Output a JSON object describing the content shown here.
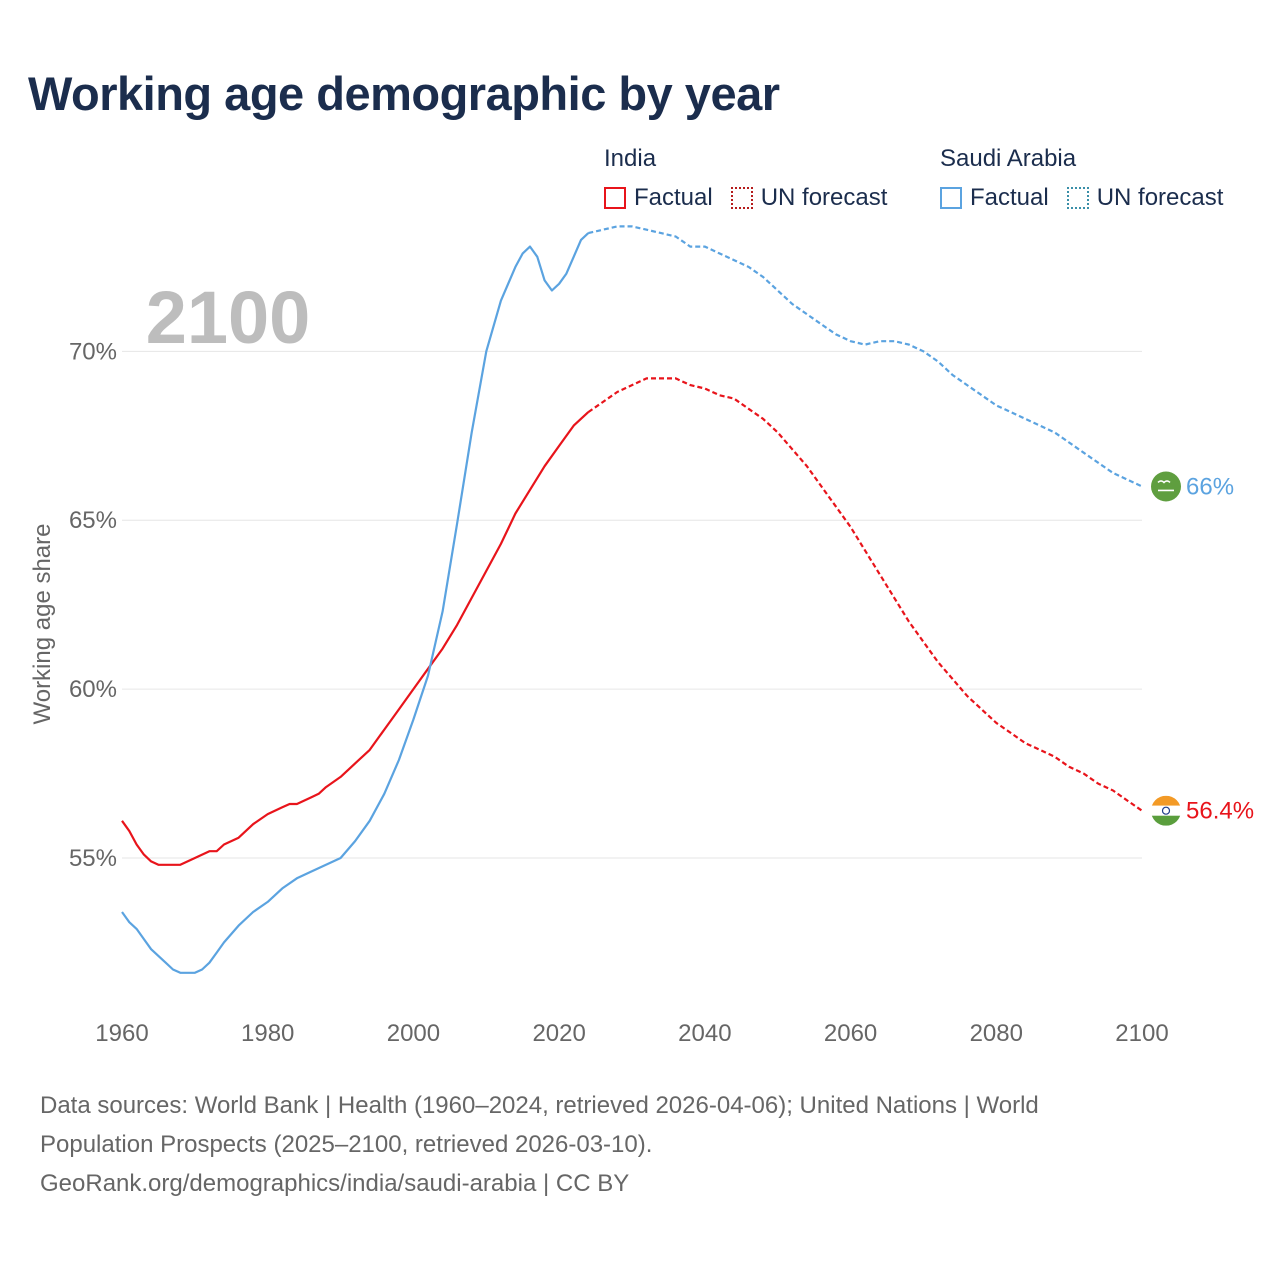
{
  "title": "Working age demographic by year",
  "year_label": "2100",
  "legend": {
    "india": {
      "name": "India",
      "factual": "Factual",
      "forecast": "UN forecast"
    },
    "saudi": {
      "name": "Saudi Arabia",
      "factual": "Factual",
      "forecast": "UN forecast"
    }
  },
  "colors": {
    "india": "#e8141b",
    "saudi": "#5ba3e0",
    "india_dot": "#b51c1c",
    "saudi_dot": "#3a8fa8"
  },
  "icons": {
    "india": "india-flag-icon",
    "saudi": "saudi-flag-icon"
  },
  "source": {
    "line1": "Data sources: World Bank | Health (1960–2024, retrieved 2026-04-06); United Nations | World",
    "line2": "Population Prospects (2025–2100, retrieved 2026-03-10).",
    "line3": "GeoRank.org/demographics/india/saudi-arabia | CC BY"
  },
  "chart_data": {
    "type": "line",
    "title": "Working age demographic by year",
    "xlabel": "",
    "ylabel": "Working age share",
    "xlim": [
      1960,
      2100
    ],
    "ylim": [
      50.5,
      73
    ],
    "grid": true,
    "x_ticks": [
      1960,
      1980,
      2000,
      2020,
      2040,
      2060,
      2080,
      2100
    ],
    "x_tick_labels": [
      "1960",
      "1980",
      "2000",
      "2020",
      "2040",
      "2060",
      "2080",
      "2100"
    ],
    "y_ticks": [
      55,
      60,
      65,
      70
    ],
    "y_tick_labels": [
      "55%",
      "60%",
      "65%",
      "70%"
    ],
    "series": [
      {
        "name": "India",
        "end_label": "56.4%",
        "factual": [
          [
            1960,
            56.1
          ],
          [
            1961,
            55.8
          ],
          [
            1962,
            55.4
          ],
          [
            1963,
            55.1
          ],
          [
            1964,
            54.9
          ],
          [
            1965,
            54.8
          ],
          [
            1966,
            54.8
          ],
          [
            1968,
            54.8
          ],
          [
            1970,
            55.0
          ],
          [
            1972,
            55.2
          ],
          [
            1973,
            55.2
          ],
          [
            1974,
            55.4
          ],
          [
            1976,
            55.6
          ],
          [
            1978,
            56.0
          ],
          [
            1980,
            56.3
          ],
          [
            1982,
            56.5
          ],
          [
            1983,
            56.6
          ],
          [
            1984,
            56.6
          ],
          [
            1986,
            56.8
          ],
          [
            1987,
            56.9
          ],
          [
            1988,
            57.1
          ],
          [
            1990,
            57.4
          ],
          [
            1992,
            57.8
          ],
          [
            1994,
            58.2
          ],
          [
            1996,
            58.8
          ],
          [
            1998,
            59.4
          ],
          [
            2000,
            60.0
          ],
          [
            2002,
            60.6
          ],
          [
            2004,
            61.2
          ],
          [
            2006,
            61.9
          ],
          [
            2008,
            62.7
          ],
          [
            2010,
            63.5
          ],
          [
            2012,
            64.3
          ],
          [
            2014,
            65.2
          ],
          [
            2016,
            65.9
          ],
          [
            2018,
            66.6
          ],
          [
            2020,
            67.2
          ],
          [
            2022,
            67.8
          ],
          [
            2024,
            68.2
          ]
        ],
        "forecast": [
          [
            2024,
            68.2
          ],
          [
            2026,
            68.5
          ],
          [
            2028,
            68.8
          ],
          [
            2030,
            69.0
          ],
          [
            2032,
            69.2
          ],
          [
            2034,
            69.2
          ],
          [
            2036,
            69.2
          ],
          [
            2038,
            69.0
          ],
          [
            2040,
            68.9
          ],
          [
            2042,
            68.7
          ],
          [
            2044,
            68.6
          ],
          [
            2046,
            68.3
          ],
          [
            2048,
            68.0
          ],
          [
            2050,
            67.6
          ],
          [
            2052,
            67.1
          ],
          [
            2054,
            66.6
          ],
          [
            2056,
            66.0
          ],
          [
            2058,
            65.4
          ],
          [
            2060,
            64.8
          ],
          [
            2062,
            64.1
          ],
          [
            2064,
            63.4
          ],
          [
            2066,
            62.7
          ],
          [
            2068,
            62.0
          ],
          [
            2070,
            61.4
          ],
          [
            2072,
            60.8
          ],
          [
            2074,
            60.3
          ],
          [
            2076,
            59.8
          ],
          [
            2078,
            59.4
          ],
          [
            2080,
            59.0
          ],
          [
            2082,
            58.7
          ],
          [
            2084,
            58.4
          ],
          [
            2086,
            58.2
          ],
          [
            2088,
            58.0
          ],
          [
            2090,
            57.7
          ],
          [
            2092,
            57.5
          ],
          [
            2094,
            57.2
          ],
          [
            2096,
            57.0
          ],
          [
            2098,
            56.7
          ],
          [
            2100,
            56.4
          ]
        ]
      },
      {
        "name": "Saudi Arabia",
        "end_label": "66%",
        "factual": [
          [
            1960,
            53.4
          ],
          [
            1961,
            53.1
          ],
          [
            1962,
            52.9
          ],
          [
            1963,
            52.6
          ],
          [
            1964,
            52.3
          ],
          [
            1966,
            51.9
          ],
          [
            1967,
            51.7
          ],
          [
            1968,
            51.6
          ],
          [
            1970,
            51.6
          ],
          [
            1971,
            51.7
          ],
          [
            1972,
            51.9
          ],
          [
            1973,
            52.2
          ],
          [
            1974,
            52.5
          ],
          [
            1976,
            53.0
          ],
          [
            1978,
            53.4
          ],
          [
            1980,
            53.7
          ],
          [
            1982,
            54.1
          ],
          [
            1984,
            54.4
          ],
          [
            1986,
            54.6
          ],
          [
            1988,
            54.8
          ],
          [
            1990,
            55.0
          ],
          [
            1992,
            55.5
          ],
          [
            1994,
            56.1
          ],
          [
            1996,
            56.9
          ],
          [
            1998,
            57.9
          ],
          [
            2000,
            59.1
          ],
          [
            2002,
            60.4
          ],
          [
            2004,
            62.3
          ],
          [
            2006,
            64.9
          ],
          [
            2008,
            67.6
          ],
          [
            2010,
            70.0
          ],
          [
            2012,
            71.5
          ],
          [
            2014,
            72.5
          ],
          [
            2015,
            72.9
          ],
          [
            2016,
            73.1
          ],
          [
            2017,
            72.8
          ],
          [
            2018,
            72.1
          ],
          [
            2019,
            71.8
          ],
          [
            2020,
            72.0
          ],
          [
            2021,
            72.3
          ],
          [
            2022,
            72.8
          ],
          [
            2023,
            73.3
          ],
          [
            2024,
            73.5
          ]
        ],
        "forecast": [
          [
            2024,
            73.5
          ],
          [
            2026,
            73.6
          ],
          [
            2028,
            73.7
          ],
          [
            2030,
            73.7
          ],
          [
            2032,
            73.6
          ],
          [
            2034,
            73.5
          ],
          [
            2036,
            73.4
          ],
          [
            2038,
            73.1
          ],
          [
            2040,
            73.1
          ],
          [
            2042,
            72.9
          ],
          [
            2044,
            72.7
          ],
          [
            2046,
            72.5
          ],
          [
            2048,
            72.2
          ],
          [
            2050,
            71.8
          ],
          [
            2052,
            71.4
          ],
          [
            2054,
            71.1
          ],
          [
            2056,
            70.8
          ],
          [
            2058,
            70.5
          ],
          [
            2060,
            70.3
          ],
          [
            2062,
            70.2
          ],
          [
            2064,
            70.3
          ],
          [
            2066,
            70.3
          ],
          [
            2068,
            70.2
          ],
          [
            2070,
            70.0
          ],
          [
            2072,
            69.7
          ],
          [
            2074,
            69.3
          ],
          [
            2076,
            69.0
          ],
          [
            2078,
            68.7
          ],
          [
            2080,
            68.4
          ],
          [
            2082,
            68.2
          ],
          [
            2084,
            68.0
          ],
          [
            2086,
            67.8
          ],
          [
            2088,
            67.6
          ],
          [
            2090,
            67.3
          ],
          [
            2092,
            67.0
          ],
          [
            2094,
            66.7
          ],
          [
            2096,
            66.4
          ],
          [
            2098,
            66.2
          ],
          [
            2100,
            66.0
          ]
        ]
      }
    ]
  }
}
